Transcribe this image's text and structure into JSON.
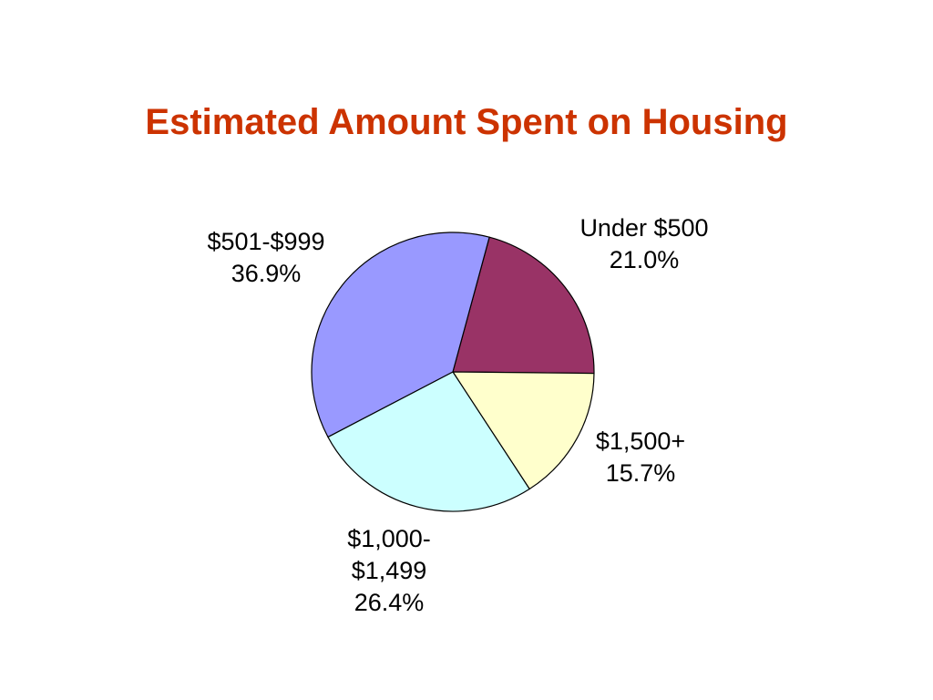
{
  "chart_data": {
    "type": "pie",
    "title": "Estimated Amount Spent on Housing",
    "unit": "%",
    "slices": [
      {
        "label_lines": [
          "Under $500",
          "21.0%"
        ],
        "category": "Under $500",
        "value": 21.0,
        "color": "#993366"
      },
      {
        "label_lines": [
          "$1,500+",
          "15.7%"
        ],
        "category": "$1,500+",
        "value": 15.7,
        "color": "#ffffcc"
      },
      {
        "label_lines": [
          "$1,000-",
          "$1,499",
          "26.4%"
        ],
        "category": "$1,000-$1,499",
        "value": 26.4,
        "color": "#ccffff"
      },
      {
        "label_lines": [
          "$501-$999",
          "36.9%"
        ],
        "category": "$501-$999",
        "value": 36.9,
        "color": "#9999ff"
      }
    ],
    "start_angle_deg": 15,
    "direction": "clockwise",
    "legend": "none",
    "title_color": "#cc3300"
  }
}
